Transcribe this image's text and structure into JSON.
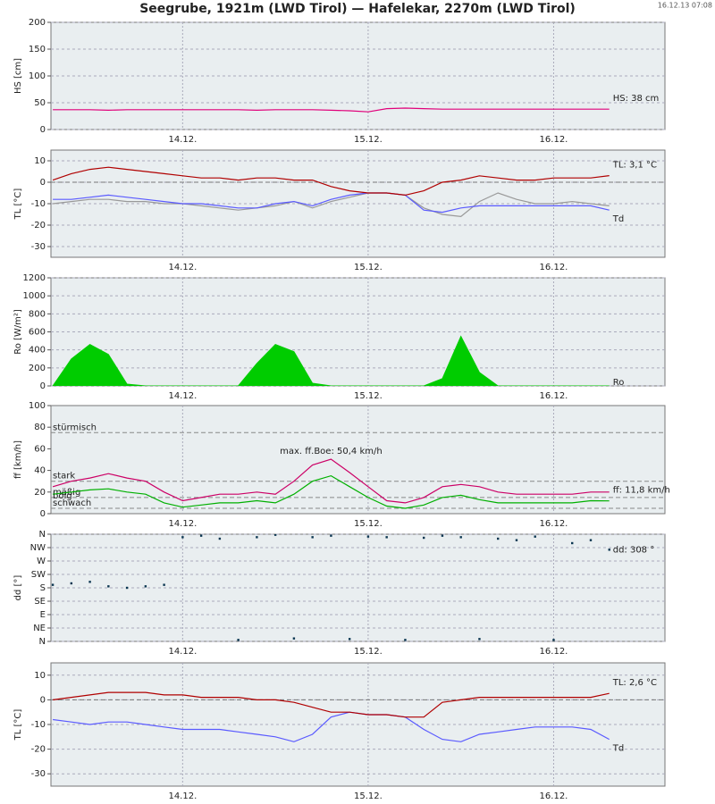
{
  "title": "Seegrube, 1921m (LWD Tirol) — Hafelekar, 2270m (LWD Tirol)",
  "timestamp": "16.12.13 07:08",
  "chart_data": [
    {
      "type": "line",
      "ylabel": "HS [cm]",
      "ylabel_color": "#d6007e",
      "x": [
        13.3,
        13.4,
        13.5,
        13.6,
        13.7,
        13.8,
        13.9,
        14.0,
        14.1,
        14.2,
        14.3,
        14.4,
        14.5,
        14.6,
        14.7,
        14.8,
        14.9,
        15.0,
        15.1,
        15.2,
        15.3,
        15.4,
        15.5,
        15.6,
        15.7,
        15.8,
        15.9,
        16.0,
        16.1,
        16.2,
        16.3
      ],
      "xlim": [
        13.29,
        16.6
      ],
      "xticks": [
        {
          "value": 14,
          "label": "14.12."
        },
        {
          "value": 15,
          "label": "15.12."
        },
        {
          "value": 16,
          "label": "16.12."
        }
      ],
      "ylim": [
        0,
        200
      ],
      "yticks": [
        0,
        50,
        100,
        150,
        200
      ],
      "grid": true,
      "series": [
        {
          "name": "HS: 38 cm",
          "color": "#e0007a",
          "values": [
            37,
            37,
            37,
            36,
            37,
            37,
            37,
            37,
            37,
            37,
            37,
            36,
            37,
            37,
            37,
            36,
            35,
            33,
            39,
            40,
            39,
            38,
            38,
            38,
            38,
            38,
            38,
            38,
            38,
            38,
            38
          ]
        }
      ]
    },
    {
      "type": "line",
      "ylabel": "TL [°C]",
      "ylabel_color": "#a00000",
      "x": [
        13.3,
        13.4,
        13.5,
        13.6,
        13.7,
        13.8,
        13.9,
        14.0,
        14.1,
        14.2,
        14.3,
        14.4,
        14.5,
        14.6,
        14.7,
        14.8,
        14.9,
        15.0,
        15.1,
        15.2,
        15.3,
        15.4,
        15.5,
        15.6,
        15.7,
        15.8,
        15.9,
        16.0,
        16.1,
        16.2,
        16.3
      ],
      "xlim": [
        13.29,
        16.6
      ],
      "xticks": [
        {
          "value": 14,
          "label": "14.12."
        },
        {
          "value": 15,
          "label": "15.12."
        },
        {
          "value": 16,
          "label": "16.12."
        }
      ],
      "ylim": [
        -35,
        15
      ],
      "yticks": [
        -30,
        -20,
        -10,
        0,
        10
      ],
      "grid": true,
      "hlines": [
        0
      ],
      "series": [
        {
          "color": "#999999",
          "values": [
            -10,
            -9,
            -8,
            -8,
            -9,
            -9,
            -10,
            -10,
            -11,
            -12,
            -13,
            -12,
            -11,
            -9,
            -12,
            -9,
            -7,
            -5,
            -5,
            -6,
            -12,
            -15,
            -16,
            -9,
            -5,
            -8,
            -10,
            -10,
            -9,
            -10,
            -11
          ]
        },
        {
          "name": "Td",
          "color": "#5a5aff",
          "values": [
            -8,
            -8,
            -7,
            -6,
            -7,
            -8,
            -9,
            -10,
            -10,
            -11,
            -12,
            -12,
            -10,
            -9,
            -11,
            -8,
            -6,
            -5,
            -5,
            -6,
            -13,
            -14,
            -12,
            -11,
            -11,
            -11,
            -11,
            -11,
            -11,
            -11,
            -13
          ]
        },
        {
          "name": "TL: 3,1 °C",
          "color": "#b00000",
          "values": [
            1,
            4,
            6,
            7,
            6,
            5,
            4,
            3,
            2,
            2,
            1,
            2,
            2,
            1,
            1,
            -2,
            -4,
            -5,
            -5,
            -6,
            -4,
            0,
            1,
            3,
            2,
            1,
            1,
            2,
            2,
            2,
            3.1
          ]
        }
      ]
    },
    {
      "type": "area",
      "ylabel": "Ro [W/m²]",
      "ylabel_color": "#008800",
      "x": [
        13.3,
        13.4,
        13.5,
        13.6,
        13.7,
        13.8,
        13.9,
        14.0,
        14.1,
        14.2,
        14.3,
        14.4,
        14.5,
        14.6,
        14.7,
        14.8,
        14.9,
        15.0,
        15.1,
        15.2,
        15.3,
        15.4,
        15.5,
        15.6,
        15.7,
        15.8,
        15.9,
        16.0,
        16.1,
        16.2,
        16.3
      ],
      "xlim": [
        13.29,
        16.6
      ],
      "xticks": [
        {
          "value": 14,
          "label": "14.12."
        },
        {
          "value": 15,
          "label": "15.12."
        },
        {
          "value": 16,
          "label": "16.12."
        }
      ],
      "ylim": [
        0,
        1200
      ],
      "yticks": [
        0,
        200,
        400,
        600,
        800,
        1000,
        1200
      ],
      "grid": true,
      "series": [
        {
          "name": "Ro",
          "color": "#00cc00",
          "values": [
            0,
            300,
            460,
            350,
            20,
            0,
            0,
            0,
            0,
            0,
            0,
            250,
            460,
            380,
            30,
            0,
            0,
            0,
            0,
            0,
            0,
            80,
            550,
            150,
            0,
            0,
            0,
            0,
            0,
            0,
            0
          ]
        }
      ]
    },
    {
      "type": "line",
      "ylabel": "ff [km/h]",
      "ylabel_color": "#00a000",
      "x": [
        13.3,
        13.4,
        13.5,
        13.6,
        13.7,
        13.8,
        13.9,
        14.0,
        14.1,
        14.2,
        14.3,
        14.4,
        14.5,
        14.6,
        14.7,
        14.8,
        14.9,
        15.0,
        15.1,
        15.2,
        15.3,
        15.4,
        15.5,
        15.6,
        15.7,
        15.8,
        15.9,
        16.0,
        16.1,
        16.2,
        16.3
      ],
      "xlim": [
        13.29,
        16.6
      ],
      "xticks": [
        {
          "value": 14,
          "label": "14.12."
        },
        {
          "value": 15,
          "label": "15.12."
        },
        {
          "value": 16,
          "label": "16.12."
        }
      ],
      "ylim": [
        0,
        100
      ],
      "yticks": [
        0,
        20,
        40,
        60,
        80,
        100
      ],
      "grid": false,
      "thresholds": [
        {
          "value": 75,
          "label": "stürmisch"
        },
        {
          "value": 30,
          "label": "stark"
        },
        {
          "value": 15,
          "label": "mäßig"
        },
        {
          "value": 5,
          "label": "schwach"
        }
      ],
      "gust_label": "böig",
      "max_label": "max. ff.Boe: 50,4 km/h",
      "series": [
        {
          "color": "#cc0066",
          "values": [
            25,
            30,
            33,
            37,
            33,
            30,
            20,
            12,
            15,
            18,
            18,
            20,
            18,
            30,
            45,
            50.4,
            38,
            25,
            12,
            10,
            15,
            25,
            27,
            25,
            20,
            18,
            18,
            18,
            18,
            20,
            20
          ]
        },
        {
          "name": "ff: 11,8 km/h",
          "color": "#00b000",
          "values": [
            18,
            20,
            22,
            23,
            20,
            18,
            10,
            6,
            8,
            10,
            10,
            12,
            10,
            18,
            30,
            35,
            25,
            15,
            7,
            5,
            8,
            15,
            17,
            13,
            10,
            10,
            10,
            10,
            10,
            12,
            11.8
          ]
        }
      ]
    },
    {
      "type": "scatter",
      "ylabel": "dd [°]",
      "ylabel_color": "#0a3550",
      "x": [
        13.3,
        13.4,
        13.5,
        13.6,
        13.7,
        13.8,
        13.9,
        14.0,
        14.1,
        14.2,
        14.3,
        14.4,
        14.5,
        14.6,
        14.7,
        14.8,
        14.9,
        15.0,
        15.1,
        15.2,
        15.3,
        15.4,
        15.5,
        15.6,
        15.7,
        15.8,
        15.9,
        16.0,
        16.1,
        16.2,
        16.3
      ],
      "xlim": [
        13.29,
        16.6
      ],
      "xticks": [
        {
          "value": 14,
          "label": "14.12."
        },
        {
          "value": 15,
          "label": "15.12."
        },
        {
          "value": 16,
          "label": "16.12."
        }
      ],
      "ylim": [
        0,
        360
      ],
      "yticks": [
        {
          "value": 0,
          "label": "N"
        },
        {
          "value": 45,
          "label": "NE"
        },
        {
          "value": 90,
          "label": "E"
        },
        {
          "value": 135,
          "label": "SE"
        },
        {
          "value": 180,
          "label": "S"
        },
        {
          "value": 225,
          "label": "SW"
        },
        {
          "value": 270,
          "label": "W"
        },
        {
          "value": 315,
          "label": "NW"
        },
        {
          "value": 360,
          "label": "N"
        }
      ],
      "grid": true,
      "series": [
        {
          "name": "dd: 308 °",
          "color": "#0a3550",
          "values": [
            190,
            195,
            200,
            185,
            180,
            185,
            190,
            350,
            355,
            345,
            5,
            350,
            358,
            10,
            350,
            355,
            8,
            352,
            350,
            5,
            348,
            355,
            350,
            8,
            345,
            340,
            352,
            5,
            330,
            340,
            308
          ]
        }
      ]
    },
    {
      "type": "line",
      "ylabel": "TL [°C]",
      "ylabel_color": "#a00000",
      "x": [
        13.3,
        13.4,
        13.5,
        13.6,
        13.7,
        13.8,
        13.9,
        14.0,
        14.1,
        14.2,
        14.3,
        14.4,
        14.5,
        14.6,
        14.7,
        14.8,
        14.9,
        15.0,
        15.1,
        15.2,
        15.3,
        15.4,
        15.5,
        15.6,
        15.7,
        15.8,
        15.9,
        16.0,
        16.1,
        16.2,
        16.3
      ],
      "xlim": [
        13.29,
        16.6
      ],
      "xticks": [
        {
          "value": 14,
          "label": "14.12."
        },
        {
          "value": 15,
          "label": "15.12."
        },
        {
          "value": 16,
          "label": "16.12."
        }
      ],
      "ylim": [
        -35,
        15
      ],
      "yticks": [
        -30,
        -20,
        -10,
        0,
        10
      ],
      "grid": true,
      "hlines": [
        0
      ],
      "series": [
        {
          "name": "Td",
          "color": "#5a5aff",
          "values": [
            -8,
            -9,
            -10,
            -9,
            -9,
            -10,
            -11,
            -12,
            -12,
            -12,
            -13,
            -14,
            -15,
            -17,
            -14,
            -7,
            -5,
            -6,
            -6,
            -7,
            -12,
            -16,
            -17,
            -14,
            -13,
            -12,
            -11,
            -11,
            -11,
            -12,
            -16
          ]
        },
        {
          "name": "TL: 2,6 °C",
          "color": "#b00000",
          "values": [
            0,
            1,
            2,
            3,
            3,
            3,
            2,
            2,
            1,
            1,
            1,
            0,
            0,
            -1,
            -3,
            -5,
            -5,
            -6,
            -6,
            -7,
            -7,
            -1,
            0,
            1,
            1,
            1,
            1,
            1,
            1,
            1,
            2.6
          ]
        }
      ]
    }
  ]
}
